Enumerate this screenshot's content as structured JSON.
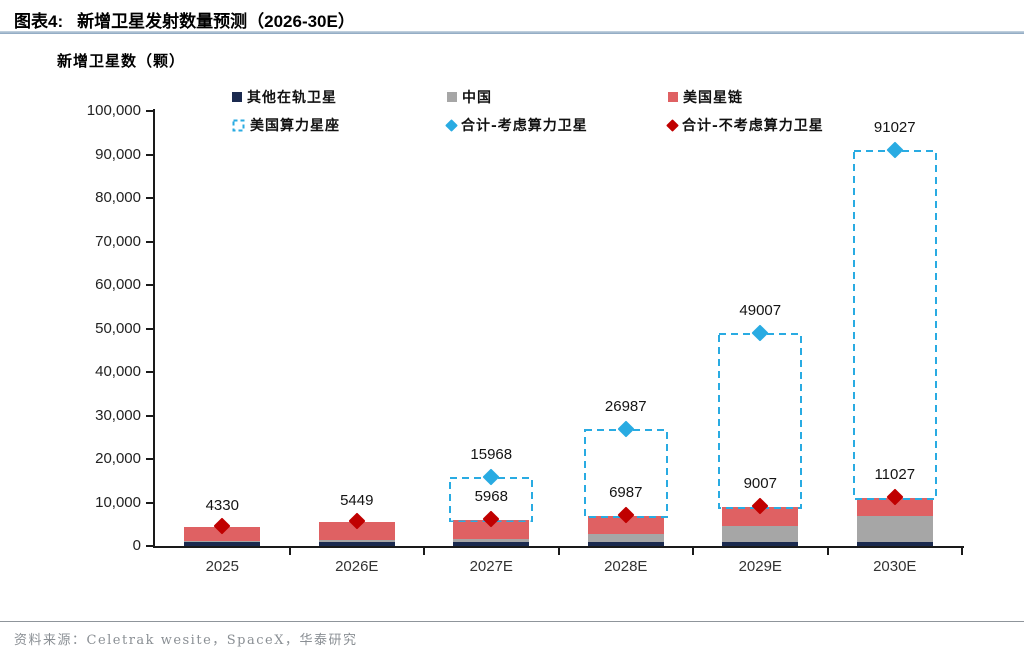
{
  "header": {
    "prefix": "图表4:",
    "title": "新增卫星发射数量预测（2026-30E）"
  },
  "chart": {
    "unit_label": "新增卫星数（颗）",
    "legend": [
      {
        "label": "其他在轨卫星",
        "type": "square",
        "color": "#1B2A4F"
      },
      {
        "label": "中国",
        "type": "square",
        "color": "#A6A6A6"
      },
      {
        "label": "美国星链",
        "type": "square",
        "color": "#DF6163"
      },
      {
        "label": "美国算力星座",
        "type": "dashed-box",
        "color": "#29ABE2"
      },
      {
        "label": "合计-考虑算力卫星",
        "type": "diamond",
        "color": "#29ABE2"
      },
      {
        "label": "合计-不考虑算力卫星",
        "type": "diamond",
        "color": "#C00000"
      }
    ]
  },
  "chart_data": {
    "type": "bar",
    "title": "新增卫星发射数量预测（2026-30E）",
    "ylabel": "新增卫星数（颗）",
    "ylim": [
      0,
      100000
    ],
    "ytick_step": 10000,
    "grid": false,
    "legend_position": "top",
    "categories": [
      "2025",
      "2026E",
      "2027E",
      "2028E",
      "2029E",
      "2030E"
    ],
    "series": [
      {
        "name": "其他在轨卫星",
        "style": "stacked-bar",
        "color": "#1B2A4F",
        "values": [
          900,
          1000,
          900,
          1000,
          900,
          1000
        ]
      },
      {
        "name": "中国",
        "style": "stacked-bar",
        "color": "#A6A6A6",
        "values": [
          200,
          400,
          600,
          1700,
          3600,
          5800
        ]
      },
      {
        "name": "美国星链",
        "style": "stacked-bar",
        "color": "#DF6163",
        "values": [
          3230,
          4049,
          4468,
          4287,
          4507,
          4227
        ]
      },
      {
        "name": "美国算力星座",
        "style": "dashed-outline-bar",
        "color": "#29ABE2",
        "values": [
          0,
          0,
          10000,
          20000,
          40000,
          80000
        ]
      }
    ],
    "markers": [
      {
        "name": "合计-考虑算力卫星",
        "shape": "diamond",
        "color": "#29ABE2",
        "values": [
          null,
          null,
          15968,
          26987,
          49007,
          91027
        ]
      },
      {
        "name": "合计-不考虑算力卫星",
        "shape": "diamond",
        "color": "#C00000",
        "values": [
          4330,
          5449,
          5968,
          6987,
          9007,
          11027
        ]
      }
    ],
    "data_labels": {
      "total_with_compute": [
        null,
        null,
        "15968",
        "26987",
        "49007",
        "91027"
      ],
      "total_without_compute": [
        "4330",
        "5449",
        "5968",
        "6987",
        "9007",
        "11027"
      ]
    }
  },
  "footer": {
    "source": "资料来源：Celetrak wesite，SpaceX，华泰研究"
  }
}
